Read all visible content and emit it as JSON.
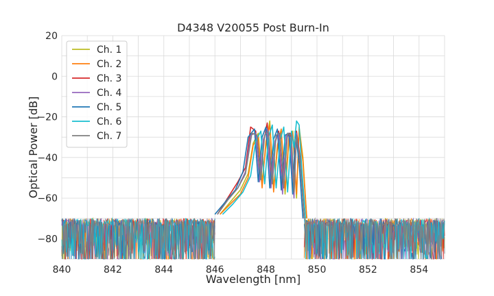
{
  "chart_data": {
    "type": "line",
    "title": "D4348 V20055 Post Burn-In",
    "xlabel": "Wavelength [nm]",
    "ylabel": "Optical Power [dB]",
    "xlim": [
      840,
      855
    ],
    "ylim": [
      -90,
      20
    ],
    "xticks": [
      840,
      842,
      844,
      846,
      848,
      850,
      852,
      854
    ],
    "yticks": [
      20,
      0,
      -20,
      -40,
      -60,
      -80
    ],
    "grid": true,
    "legend_position": "top-left",
    "noise_floor_db": -72,
    "series": [
      {
        "name": "Ch. 1",
        "color": "#bcbd22",
        "x": [
          846.2,
          846.6,
          847.0,
          847.3,
          847.5,
          847.7,
          847.85,
          848.0,
          848.15,
          848.3,
          848.45,
          848.6,
          848.75,
          848.9,
          849.05,
          849.2,
          849.3,
          849.45,
          849.6
        ],
        "y": [
          -68,
          -62,
          -56,
          -48,
          -33,
          -28,
          -52,
          -34,
          -22,
          -55,
          -36,
          -27,
          -58,
          -32,
          -27,
          -60,
          -25,
          -40,
          -70
        ]
      },
      {
        "name": "Ch. 2",
        "color": "#ff7f0e",
        "x": [
          846.2,
          846.6,
          847.0,
          847.3,
          847.5,
          847.7,
          847.85,
          848.0,
          848.15,
          848.3,
          848.45,
          848.6,
          848.75,
          848.9,
          849.05,
          849.2,
          849.3,
          849.45,
          849.6
        ],
        "y": [
          -68,
          -63,
          -58,
          -50,
          -34,
          -30,
          -55,
          -32,
          -24,
          -57,
          -34,
          -26,
          -56,
          -30,
          -28,
          -58,
          -26,
          -42,
          -70
        ]
      },
      {
        "name": "Ch. 3",
        "color": "#d62728",
        "x": [
          846.1,
          846.5,
          846.9,
          847.2,
          847.4,
          847.6,
          847.75,
          847.9,
          848.05,
          848.2,
          848.35,
          848.5,
          848.65,
          848.8,
          848.95,
          849.1,
          849.2,
          849.35,
          849.5
        ],
        "y": [
          -68,
          -60,
          -52,
          -45,
          -25,
          -27,
          -50,
          -33,
          -23,
          -52,
          -33,
          -27,
          -54,
          -30,
          -28,
          -57,
          -27,
          -41,
          -70
        ]
      },
      {
        "name": "Ch. 4",
        "color": "#9467bd",
        "x": [
          846.1,
          846.5,
          846.9,
          847.2,
          847.4,
          847.6,
          847.75,
          847.9,
          848.05,
          848.2,
          848.35,
          848.5,
          848.65,
          848.8,
          848.95,
          849.1,
          849.2,
          849.35,
          849.5
        ],
        "y": [
          -68,
          -61,
          -55,
          -47,
          -29,
          -28,
          -52,
          -31,
          -26,
          -55,
          -32,
          -28,
          -58,
          -29,
          -30,
          -60,
          -28,
          -44,
          -70
        ]
      },
      {
        "name": "Ch. 5",
        "color": "#1f77b4",
        "x": [
          846.0,
          846.4,
          846.8,
          847.1,
          847.3,
          847.55,
          847.7,
          847.85,
          848.0,
          848.15,
          848.3,
          848.45,
          848.6,
          848.75,
          848.9,
          849.05,
          849.15,
          849.3,
          849.45
        ],
        "y": [
          -68,
          -62,
          -56,
          -47,
          -30,
          -26,
          -52,
          -30,
          -25,
          -55,
          -31,
          -26,
          -56,
          -29,
          -28,
          -58,
          -27,
          -43,
          -70
        ]
      },
      {
        "name": "Ch. 6",
        "color": "#17becf",
        "x": [
          846.3,
          846.7,
          847.1,
          847.4,
          847.6,
          847.8,
          847.95,
          848.1,
          848.25,
          848.4,
          848.55,
          848.7,
          848.85,
          849.0,
          849.1,
          849.2,
          849.3,
          849.4,
          849.55
        ],
        "y": [
          -68,
          -63,
          -57,
          -49,
          -32,
          -27,
          -53,
          -30,
          -24,
          -55,
          -32,
          -25,
          -57,
          -27,
          -35,
          -22,
          -24,
          -45,
          -70
        ]
      },
      {
        "name": "Ch. 7",
        "color": "#7f7f7f",
        "x": [
          846.1,
          846.5,
          846.9,
          847.2,
          847.45,
          847.65,
          847.8,
          847.95,
          848.1,
          848.25,
          848.4,
          848.55,
          848.7,
          848.85,
          849.0,
          849.1,
          849.2,
          849.35,
          849.5
        ],
        "y": [
          -68,
          -61,
          -55,
          -48,
          -28,
          -29,
          -51,
          -29,
          -27,
          -53,
          -29,
          -28,
          -55,
          -28,
          -29,
          -57,
          -29,
          -43,
          -70
        ]
      }
    ]
  }
}
